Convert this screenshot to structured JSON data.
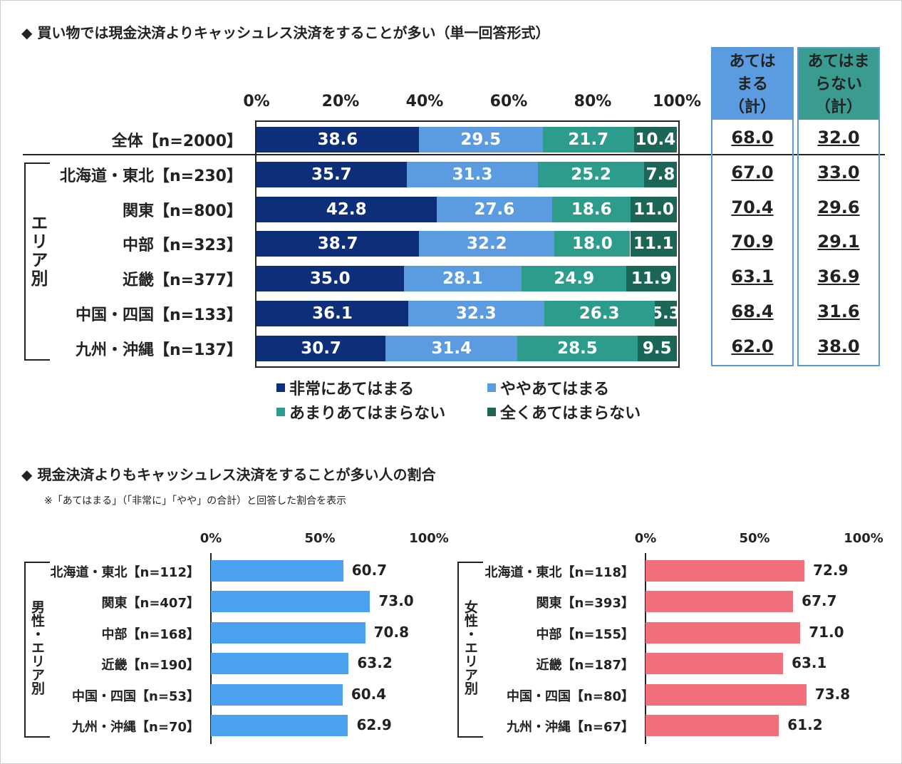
{
  "title1": "◆ 買い物では現金決済よりキャッシュレス決済をすることが多い（単一回答形式）",
  "title2": "◆ 現金決済よりもキャッシュレス決済をすることが多い人の割合",
  "note2": "※「あてはまる」（「非常に」「やや」の合計）と回答した割合を表示",
  "group_label_area": "エリア別",
  "group_label_male": "男性・エリア別",
  "group_label_female": "女性・エリア別",
  "sum_headers": [
    "あてはまる（計）",
    "あてはまらない（計）"
  ],
  "sum_header_lines": [
    [
      "あては",
      "まる",
      "（計）"
    ],
    [
      "あてはま",
      "らない",
      "（計）"
    ]
  ],
  "colors": {
    "very": "#0d2f7a",
    "somewhat": "#5b9be0",
    "notmuch": "#2e9c8c",
    "notatall": "#1b6656",
    "sum_box": "#5b9bd5",
    "sum_fill2": "#3a9c91",
    "male_bar": "#4ba3f0",
    "female_bar": "#f2707c"
  },
  "chart_data": [
    {
      "type": "bar",
      "orientation": "horizontal",
      "stacked": true,
      "title": "買い物では現金決済よりキャッシュレス決済をすることが多い（単一回答形式）",
      "xlim": [
        0,
        100
      ],
      "ticks": [
        "0%",
        "20%",
        "40%",
        "60%",
        "80%",
        "100%"
      ],
      "categories": [
        "全体【n=2000】",
        "北海道・東北【n=230】",
        "関東【n=800】",
        "中部【n=323】",
        "近畿【n=377】",
        "中国・四国【n=133】",
        "九州・沖縄【n=137】"
      ],
      "series": [
        {
          "name": "非常にあてはまる",
          "values": [
            38.6,
            35.7,
            42.8,
            38.7,
            35.0,
            36.1,
            30.7
          ]
        },
        {
          "name": "ややあてはまる",
          "values": [
            29.5,
            31.3,
            27.6,
            32.2,
            28.1,
            32.3,
            31.4
          ]
        },
        {
          "name": "あまりあてはまらない",
          "values": [
            21.7,
            25.2,
            18.6,
            18.0,
            24.9,
            26.3,
            28.5
          ]
        },
        {
          "name": "全くあてはまらない",
          "values": [
            10.4,
            7.8,
            11.0,
            11.1,
            11.9,
            5.3,
            9.5
          ]
        }
      ],
      "labels": [
        [
          "38.6",
          "29.5",
          "21.7",
          "10.4"
        ],
        [
          "35.7",
          "31.3",
          "25.2",
          "7.8"
        ],
        [
          "42.8",
          "27.6",
          "18.6",
          "11.0"
        ],
        [
          "38.7",
          "32.2",
          "18.0",
          "11.1"
        ],
        [
          "35.0",
          "28.1",
          "24.9",
          "11.9"
        ],
        [
          "36.1",
          "32.3",
          "26.3",
          "5.3"
        ],
        [
          "30.7",
          "31.4",
          "28.5",
          "9.5"
        ]
      ],
      "sum_applies": [
        "68.0",
        "67.0",
        "70.4",
        "70.9",
        "63.1",
        "68.4",
        "62.0"
      ],
      "sum_not_applies": [
        "32.0",
        "33.0",
        "29.6",
        "29.1",
        "36.9",
        "31.6",
        "38.0"
      ],
      "legend": [
        "非常にあてはまる",
        "ややあてはまる",
        "あまりあてはまらない",
        "全くあてはまらない"
      ],
      "legend_position": "bottom"
    },
    {
      "type": "bar",
      "orientation": "horizontal",
      "group": "男性・エリア別",
      "xlim": [
        0,
        100
      ],
      "ticks": [
        "0%",
        "50%",
        "100%"
      ],
      "categories": [
        "北海道・東北【n=112】",
        "関東【n=407】",
        "中部【n=168】",
        "近畿【n=190】",
        "中国・四国【n=53】",
        "九州・沖縄【n=70】"
      ],
      "values": [
        60.7,
        73.0,
        70.8,
        63.2,
        60.4,
        62.9
      ],
      "labels": [
        "60.7",
        "73.0",
        "70.8",
        "63.2",
        "60.4",
        "62.9"
      ]
    },
    {
      "type": "bar",
      "orientation": "horizontal",
      "group": "女性・エリア別",
      "xlim": [
        0,
        100
      ],
      "ticks": [
        "0%",
        "50%",
        "100%"
      ],
      "categories": [
        "北海道・東北【n=118】",
        "関東【n=393】",
        "中部【n=155】",
        "近畿【n=187】",
        "中国・四国【n=80】",
        "九州・沖縄【n=67】"
      ],
      "values": [
        72.9,
        67.7,
        71.0,
        63.1,
        73.8,
        61.2
      ],
      "labels": [
        "72.9",
        "67.7",
        "71.0",
        "63.1",
        "73.8",
        "61.2"
      ]
    }
  ]
}
